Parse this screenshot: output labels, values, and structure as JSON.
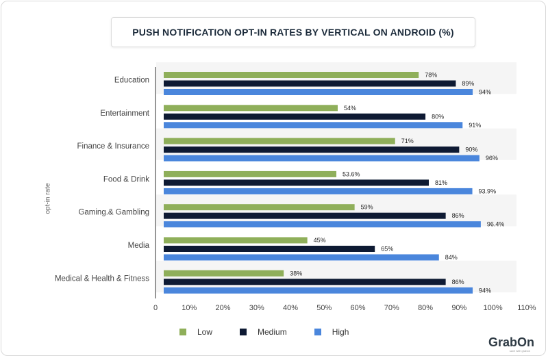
{
  "chart_data": {
    "type": "bar",
    "orientation": "horizontal",
    "title": "PUSH NOTIFICATION OPT-IN RATES BY VERTICAL ON ANDROID (%)",
    "ylabel": "opt-in rate",
    "categories": [
      "Education",
      "Entertainment",
      "Finance & Insurance",
      "Food & Drink",
      "Gaming.& Gambling",
      "Media",
      "Medical & Health & Fitness"
    ],
    "series": [
      {
        "name": "Low",
        "color": "#8faf5a",
        "values": [
          78,
          54,
          71,
          53.6,
          59,
          45,
          38
        ],
        "labels": [
          "78%",
          "54%",
          "71%",
          "53.6%",
          "59%",
          "45%",
          "38%"
        ]
      },
      {
        "name": "Medium",
        "color": "#0e1a33",
        "values": [
          89,
          80,
          90,
          81,
          86,
          65,
          86
        ],
        "labels": [
          "89%",
          "80%",
          "90%",
          "81%",
          "86%",
          "65%",
          "86%"
        ]
      },
      {
        "name": "High",
        "color": "#4a86dc",
        "values": [
          94,
          91,
          96,
          93.9,
          96.4,
          84,
          94
        ],
        "labels": [
          "94%",
          "91%",
          "96%",
          "93.9%",
          "96.4%",
          "84%",
          "94%"
        ]
      }
    ],
    "xlim": [
      0,
      110
    ],
    "ticks": [
      0,
      10,
      20,
      30,
      40,
      50,
      60,
      70,
      80,
      90,
      100,
      110
    ],
    "tick_labels": [
      "0",
      "10%",
      "20%",
      "30%",
      "40%",
      "50%",
      "60%",
      "70%",
      "80%",
      "90%",
      "100%",
      "110%"
    ],
    "legend": "bottom"
  },
  "brand": {
    "name": "GrabOn",
    "tagline": "save with grabon"
  }
}
